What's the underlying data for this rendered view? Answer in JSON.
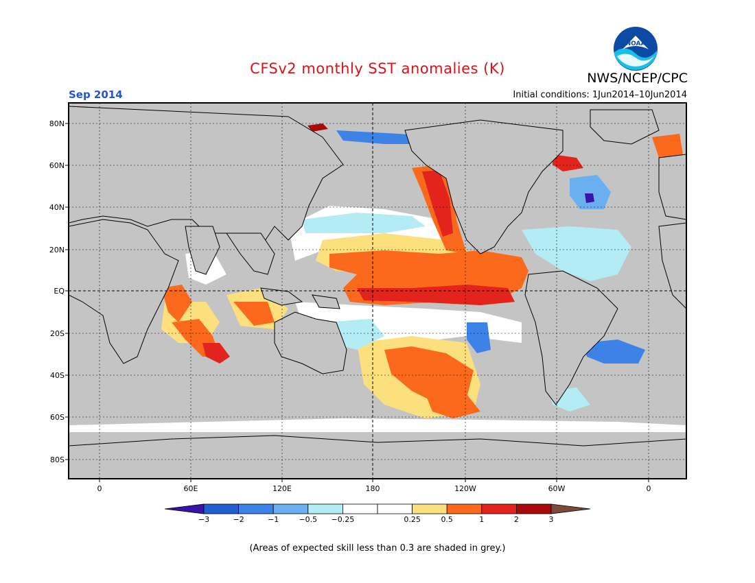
{
  "title": "CFSv2 monthly SST anomalies (K)",
  "agency": "NWS/NCEP/CPC",
  "logo_text": "NOAA",
  "valid_period": "Sep 2014",
  "initial_conditions": "Initial conditions: 1Jun2014–10Jun2014",
  "footnote": "(Areas of expected skill less than 0.3 are shaded in grey.)",
  "lat_labels": [
    "80N",
    "60N",
    "40N",
    "20N",
    "EQ",
    "20S",
    "40S",
    "60S",
    "80S"
  ],
  "lon_labels": [
    "0",
    "60E",
    "120E",
    "180",
    "120W",
    "60W",
    "0"
  ],
  "colorbar": {
    "colors": [
      "#3a14a8",
      "#1f5fd0",
      "#3d82e6",
      "#6ab0f0",
      "#b4ecf6",
      "#ffffff",
      "#ffffff",
      "#fde07e",
      "#fb6a1c",
      "#e2241c",
      "#a80a0a",
      "#7a4a3a"
    ],
    "labels": [
      "−3",
      "−2",
      "−1",
      "−0.5",
      "−0.25",
      "0.25",
      "0.5",
      "1",
      "2",
      "3"
    ]
  },
  "colors": {
    "land_grey": "#c4c4c4",
    "title_red": "#d8141a",
    "date_blue": "#2454d8"
  }
}
